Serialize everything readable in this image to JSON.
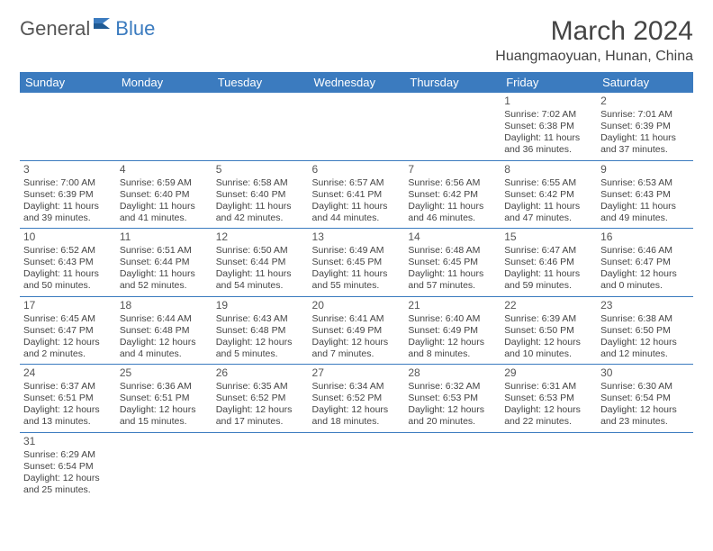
{
  "brand": {
    "part1": "General",
    "part2": "Blue"
  },
  "title": "March 2024",
  "location": "Huangmaoyuan, Hunan, China",
  "colors": {
    "header_bg": "#3b7bbf",
    "header_text": "#ffffff",
    "border": "#3b7bbf",
    "text": "#444444",
    "logo_gray": "#555555",
    "logo_blue": "#3b7bbf",
    "background": "#ffffff"
  },
  "day_headers": [
    "Sunday",
    "Monday",
    "Tuesday",
    "Wednesday",
    "Thursday",
    "Friday",
    "Saturday"
  ],
  "weeks": [
    [
      null,
      null,
      null,
      null,
      null,
      {
        "n": "1",
        "sr": "Sunrise: 7:02 AM",
        "ss": "Sunset: 6:38 PM",
        "dl": "Daylight: 11 hours and 36 minutes."
      },
      {
        "n": "2",
        "sr": "Sunrise: 7:01 AM",
        "ss": "Sunset: 6:39 PM",
        "dl": "Daylight: 11 hours and 37 minutes."
      }
    ],
    [
      {
        "n": "3",
        "sr": "Sunrise: 7:00 AM",
        "ss": "Sunset: 6:39 PM",
        "dl": "Daylight: 11 hours and 39 minutes."
      },
      {
        "n": "4",
        "sr": "Sunrise: 6:59 AM",
        "ss": "Sunset: 6:40 PM",
        "dl": "Daylight: 11 hours and 41 minutes."
      },
      {
        "n": "5",
        "sr": "Sunrise: 6:58 AM",
        "ss": "Sunset: 6:40 PM",
        "dl": "Daylight: 11 hours and 42 minutes."
      },
      {
        "n": "6",
        "sr": "Sunrise: 6:57 AM",
        "ss": "Sunset: 6:41 PM",
        "dl": "Daylight: 11 hours and 44 minutes."
      },
      {
        "n": "7",
        "sr": "Sunrise: 6:56 AM",
        "ss": "Sunset: 6:42 PM",
        "dl": "Daylight: 11 hours and 46 minutes."
      },
      {
        "n": "8",
        "sr": "Sunrise: 6:55 AM",
        "ss": "Sunset: 6:42 PM",
        "dl": "Daylight: 11 hours and 47 minutes."
      },
      {
        "n": "9",
        "sr": "Sunrise: 6:53 AM",
        "ss": "Sunset: 6:43 PM",
        "dl": "Daylight: 11 hours and 49 minutes."
      }
    ],
    [
      {
        "n": "10",
        "sr": "Sunrise: 6:52 AM",
        "ss": "Sunset: 6:43 PM",
        "dl": "Daylight: 11 hours and 50 minutes."
      },
      {
        "n": "11",
        "sr": "Sunrise: 6:51 AM",
        "ss": "Sunset: 6:44 PM",
        "dl": "Daylight: 11 hours and 52 minutes."
      },
      {
        "n": "12",
        "sr": "Sunrise: 6:50 AM",
        "ss": "Sunset: 6:44 PM",
        "dl": "Daylight: 11 hours and 54 minutes."
      },
      {
        "n": "13",
        "sr": "Sunrise: 6:49 AM",
        "ss": "Sunset: 6:45 PM",
        "dl": "Daylight: 11 hours and 55 minutes."
      },
      {
        "n": "14",
        "sr": "Sunrise: 6:48 AM",
        "ss": "Sunset: 6:45 PM",
        "dl": "Daylight: 11 hours and 57 minutes."
      },
      {
        "n": "15",
        "sr": "Sunrise: 6:47 AM",
        "ss": "Sunset: 6:46 PM",
        "dl": "Daylight: 11 hours and 59 minutes."
      },
      {
        "n": "16",
        "sr": "Sunrise: 6:46 AM",
        "ss": "Sunset: 6:47 PM",
        "dl": "Daylight: 12 hours and 0 minutes."
      }
    ],
    [
      {
        "n": "17",
        "sr": "Sunrise: 6:45 AM",
        "ss": "Sunset: 6:47 PM",
        "dl": "Daylight: 12 hours and 2 minutes."
      },
      {
        "n": "18",
        "sr": "Sunrise: 6:44 AM",
        "ss": "Sunset: 6:48 PM",
        "dl": "Daylight: 12 hours and 4 minutes."
      },
      {
        "n": "19",
        "sr": "Sunrise: 6:43 AM",
        "ss": "Sunset: 6:48 PM",
        "dl": "Daylight: 12 hours and 5 minutes."
      },
      {
        "n": "20",
        "sr": "Sunrise: 6:41 AM",
        "ss": "Sunset: 6:49 PM",
        "dl": "Daylight: 12 hours and 7 minutes."
      },
      {
        "n": "21",
        "sr": "Sunrise: 6:40 AM",
        "ss": "Sunset: 6:49 PM",
        "dl": "Daylight: 12 hours and 8 minutes."
      },
      {
        "n": "22",
        "sr": "Sunrise: 6:39 AM",
        "ss": "Sunset: 6:50 PM",
        "dl": "Daylight: 12 hours and 10 minutes."
      },
      {
        "n": "23",
        "sr": "Sunrise: 6:38 AM",
        "ss": "Sunset: 6:50 PM",
        "dl": "Daylight: 12 hours and 12 minutes."
      }
    ],
    [
      {
        "n": "24",
        "sr": "Sunrise: 6:37 AM",
        "ss": "Sunset: 6:51 PM",
        "dl": "Daylight: 12 hours and 13 minutes."
      },
      {
        "n": "25",
        "sr": "Sunrise: 6:36 AM",
        "ss": "Sunset: 6:51 PM",
        "dl": "Daylight: 12 hours and 15 minutes."
      },
      {
        "n": "26",
        "sr": "Sunrise: 6:35 AM",
        "ss": "Sunset: 6:52 PM",
        "dl": "Daylight: 12 hours and 17 minutes."
      },
      {
        "n": "27",
        "sr": "Sunrise: 6:34 AM",
        "ss": "Sunset: 6:52 PM",
        "dl": "Daylight: 12 hours and 18 minutes."
      },
      {
        "n": "28",
        "sr": "Sunrise: 6:32 AM",
        "ss": "Sunset: 6:53 PM",
        "dl": "Daylight: 12 hours and 20 minutes."
      },
      {
        "n": "29",
        "sr": "Sunrise: 6:31 AM",
        "ss": "Sunset: 6:53 PM",
        "dl": "Daylight: 12 hours and 22 minutes."
      },
      {
        "n": "30",
        "sr": "Sunrise: 6:30 AM",
        "ss": "Sunset: 6:54 PM",
        "dl": "Daylight: 12 hours and 23 minutes."
      }
    ],
    [
      {
        "n": "31",
        "sr": "Sunrise: 6:29 AM",
        "ss": "Sunset: 6:54 PM",
        "dl": "Daylight: 12 hours and 25 minutes."
      },
      null,
      null,
      null,
      null,
      null,
      null
    ]
  ]
}
